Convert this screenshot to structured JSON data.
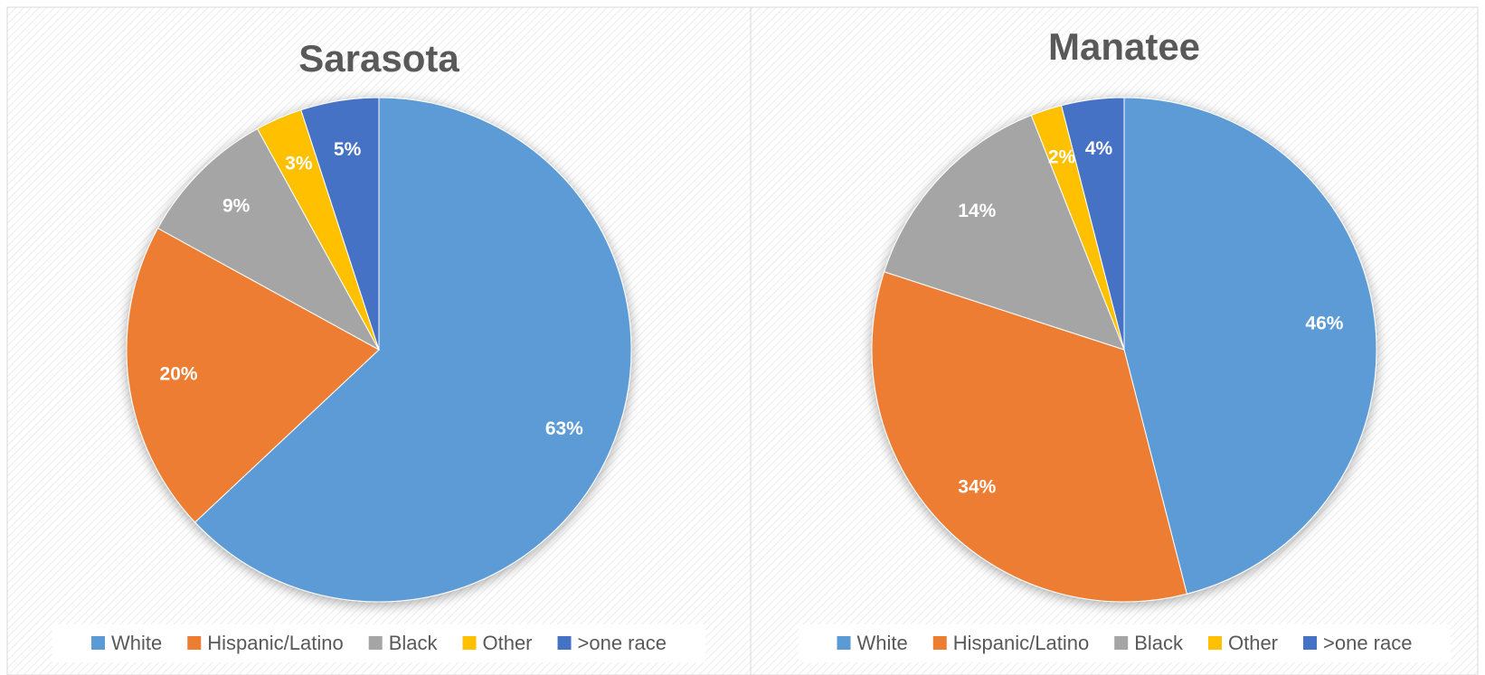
{
  "chart_data": [
    {
      "type": "pie",
      "title": "Sarasota",
      "categories": [
        "White",
        "Hispanic/Latino",
        "Black",
        "Other",
        ">one race"
      ],
      "values": [
        63,
        20,
        9,
        3,
        5
      ],
      "value_labels": [
        "63%",
        "20%",
        "9%",
        "3%",
        "5%"
      ],
      "colors": [
        "#5b9bd5",
        "#ed7d31",
        "#a5a5a5",
        "#ffc000",
        "#4472c4"
      ],
      "legend": "bottom"
    },
    {
      "type": "pie",
      "title": "Manatee",
      "categories": [
        "White",
        "Hispanic/Latino",
        "Black",
        "Other",
        ">one race"
      ],
      "values": [
        46,
        34,
        14,
        2,
        4
      ],
      "value_labels": [
        "46%",
        "34%",
        "14%",
        "2%",
        "4%"
      ],
      "colors": [
        "#5b9bd5",
        "#ed7d31",
        "#a5a5a5",
        "#ffc000",
        "#4472c4"
      ],
      "legend": "bottom"
    }
  ]
}
